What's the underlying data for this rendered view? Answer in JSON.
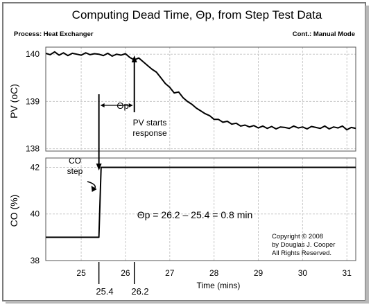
{
  "chart_data": {
    "type": "line",
    "title": "Computing Dead Time, Θp, from Step Test Data",
    "header_left": "Process: Heat Exchanger",
    "header_right": "Cont.: Manual Mode",
    "xlabel": "Time (mins)",
    "xlim": [
      24.2,
      31.2
    ],
    "x_ticks": [
      25,
      26,
      27,
      28,
      29,
      30,
      31
    ],
    "panels": [
      {
        "ylabel": "PV (oC)",
        "ylim": [
          137.95,
          140.15
        ],
        "y_ticks": [
          138,
          139,
          140
        ],
        "series": [
          {
            "name": "PV",
            "x": [
              24.2,
              24.3,
              24.4,
              24.5,
              24.6,
              24.7,
              24.8,
              24.9,
              25.0,
              25.1,
              25.2,
              25.3,
              25.4,
              25.5,
              25.6,
              25.7,
              25.8,
              25.9,
              26.0,
              26.1,
              26.2,
              26.3,
              26.4,
              26.5,
              26.6,
              26.7,
              26.8,
              26.9,
              27.0,
              27.1,
              27.2,
              27.3,
              27.4,
              27.5,
              27.6,
              27.7,
              27.8,
              27.9,
              28.0,
              28.1,
              28.2,
              28.3,
              28.4,
              28.5,
              28.6,
              28.7,
              28.8,
              28.9,
              29.0,
              29.1,
              29.2,
              29.3,
              29.4,
              29.5,
              29.6,
              29.7,
              29.8,
              29.9,
              30.0,
              30.1,
              30.2,
              30.3,
              30.4,
              30.5,
              30.6,
              30.7,
              30.8,
              30.9,
              31.0,
              31.1,
              31.2
            ],
            "y": [
              140.02,
              139.99,
              140.05,
              139.98,
              140.03,
              139.97,
              140.02,
              140.0,
              139.98,
              140.03,
              139.99,
              140.01,
              140.0,
              139.97,
              140.02,
              139.96,
              140.0,
              139.98,
              140.01,
              139.93,
              139.88,
              139.92,
              139.84,
              139.76,
              139.68,
              139.62,
              139.5,
              139.38,
              139.3,
              139.18,
              139.2,
              139.08,
              139.0,
              138.94,
              138.86,
              138.8,
              138.74,
              138.7,
              138.62,
              138.62,
              138.56,
              138.58,
              138.52,
              138.54,
              138.48,
              138.5,
              138.46,
              138.49,
              138.44,
              138.48,
              138.43,
              138.47,
              138.42,
              138.46,
              138.45,
              138.43,
              138.48,
              138.44,
              138.46,
              138.42,
              138.47,
              138.45,
              138.43,
              138.48,
              138.42,
              138.46,
              138.44,
              138.48,
              138.4,
              138.45,
              138.43
            ]
          }
        ]
      },
      {
        "ylabel": "CO (%)",
        "ylim": [
          38,
          42.4
        ],
        "y_ticks": [
          38,
          40,
          42
        ],
        "series": [
          {
            "name": "CO",
            "x": [
              24.2,
              25.4,
              25.45,
              31.2
            ],
            "y": [
              39,
              39,
              42,
              42
            ]
          }
        ]
      }
    ],
    "annotations": {
      "theta_label": "Θp",
      "pv_note": [
        "PV starts",
        "response"
      ],
      "co_note": [
        "CO",
        "step"
      ],
      "equation": "Θp = 26.2 – 25.4 = 0.8 min",
      "copyright": [
        "Copyright © 2008",
        "by Douglas J. Cooper",
        "All Rights Reserved."
      ],
      "step_time": "25.4",
      "response_time": "26.2",
      "step_time_value": 25.4,
      "response_time_value": 26.2
    },
    "grid": true,
    "legend": "none"
  }
}
